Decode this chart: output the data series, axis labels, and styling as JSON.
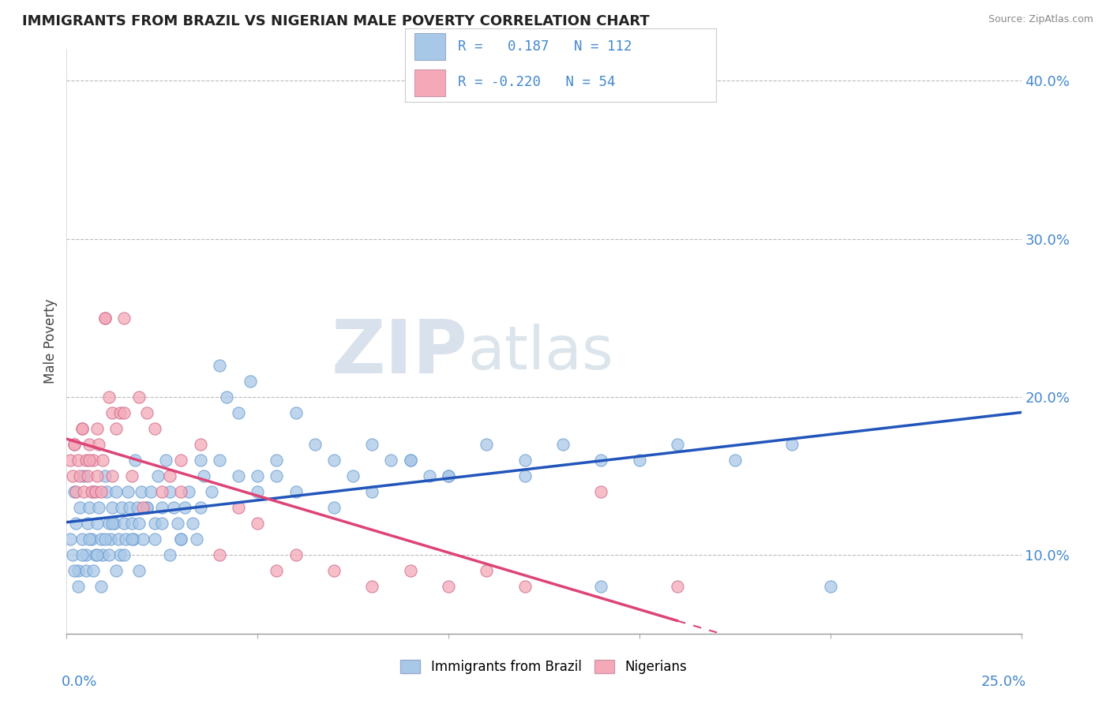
{
  "title": "IMMIGRANTS FROM BRAZIL VS NIGERIAN MALE POVERTY CORRELATION CHART",
  "source": "Source: ZipAtlas.com",
  "ylabel": "Male Poverty",
  "xlim": [
    0.0,
    25.0
  ],
  "ylim": [
    5.0,
    42.0
  ],
  "yticks": [
    10.0,
    20.0,
    30.0,
    40.0
  ],
  "blue_R": 0.187,
  "blue_N": 112,
  "pink_R": -0.22,
  "pink_N": 54,
  "blue_color": "#a8c8e8",
  "pink_color": "#f4a8b8",
  "blue_line_color": "#2255bb",
  "pink_line_color": "#dd4477",
  "legend_label_blue": "Immigrants from Brazil",
  "legend_label_pink": "Nigerians",
  "background_color": "#ffffff",
  "grid_color": "#bbbbbb",
  "title_color": "#222222",
  "axis_label_color": "#4488cc",
  "watermark_zip": "ZIP",
  "watermark_atlas": "atlas",
  "watermark_color": "#c8d8e8",
  "blue_scatter_x": [
    0.1,
    0.15,
    0.2,
    0.25,
    0.3,
    0.35,
    0.4,
    0.45,
    0.5,
    0.55,
    0.6,
    0.65,
    0.7,
    0.75,
    0.8,
    0.85,
    0.9,
    0.95,
    1.0,
    1.05,
    1.1,
    1.15,
    1.2,
    1.25,
    1.3,
    1.35,
    1.4,
    1.45,
    1.5,
    1.55,
    1.6,
    1.65,
    1.7,
    1.75,
    1.8,
    1.85,
    1.9,
    1.95,
    2.0,
    2.1,
    2.2,
    2.3,
    2.4,
    2.5,
    2.6,
    2.7,
    2.8,
    2.9,
    3.0,
    3.1,
    3.2,
    3.3,
    3.4,
    3.5,
    3.6,
    3.8,
    4.0,
    4.2,
    4.5,
    4.8,
    5.0,
    5.5,
    6.0,
    6.5,
    7.0,
    7.5,
    8.0,
    8.5,
    9.0,
    9.5,
    10.0,
    11.0,
    12.0,
    13.0,
    14.0,
    15.0,
    16.0,
    17.5,
    19.0,
    20.0,
    0.2,
    0.3,
    0.4,
    0.5,
    0.6,
    0.7,
    0.8,
    0.9,
    1.0,
    1.1,
    1.2,
    1.3,
    1.5,
    1.7,
    1.9,
    2.1,
    2.3,
    2.5,
    2.7,
    3.0,
    3.5,
    4.0,
    4.5,
    5.0,
    5.5,
    6.0,
    7.0,
    8.0,
    9.0,
    10.0,
    12.0,
    14.0
  ],
  "blue_scatter_y": [
    11,
    10,
    14,
    12,
    9,
    13,
    11,
    15,
    10,
    12,
    13,
    11,
    14,
    10,
    12,
    13,
    11,
    10,
    15,
    14,
    12,
    11,
    13,
    12,
    14,
    11,
    10,
    13,
    12,
    11,
    14,
    13,
    12,
    11,
    16,
    13,
    12,
    14,
    11,
    13,
    14,
    12,
    15,
    13,
    16,
    14,
    13,
    12,
    11,
    13,
    14,
    12,
    11,
    16,
    15,
    14,
    22,
    20,
    19,
    21,
    15,
    16,
    19,
    17,
    16,
    15,
    14,
    16,
    16,
    15,
    15,
    17,
    16,
    17,
    16,
    16,
    17,
    16,
    17,
    8,
    9,
    8,
    10,
    9,
    11,
    9,
    10,
    8,
    11,
    10,
    12,
    9,
    10,
    11,
    9,
    13,
    11,
    12,
    10,
    11,
    13,
    16,
    15,
    14,
    15,
    14,
    13,
    17,
    16,
    15,
    15,
    8
  ],
  "pink_scatter_x": [
    0.1,
    0.15,
    0.2,
    0.25,
    0.3,
    0.35,
    0.4,
    0.45,
    0.5,
    0.55,
    0.6,
    0.65,
    0.7,
    0.75,
    0.8,
    0.85,
    0.9,
    0.95,
    1.0,
    1.1,
    1.2,
    1.3,
    1.4,
    1.5,
    1.7,
    1.9,
    2.1,
    2.3,
    2.5,
    2.7,
    3.0,
    3.5,
    4.0,
    4.5,
    5.0,
    5.5,
    6.0,
    7.0,
    8.0,
    9.0,
    10.0,
    11.0,
    12.0,
    14.0,
    16.0,
    0.2,
    0.4,
    0.6,
    0.8,
    1.0,
    1.2,
    1.5,
    2.0,
    3.0
  ],
  "pink_scatter_y": [
    16,
    15,
    17,
    14,
    16,
    15,
    18,
    14,
    16,
    15,
    17,
    14,
    16,
    14,
    15,
    17,
    14,
    16,
    25,
    20,
    19,
    18,
    19,
    25,
    15,
    20,
    19,
    18,
    14,
    15,
    16,
    17,
    10,
    13,
    12,
    9,
    10,
    9,
    8,
    9,
    8,
    9,
    8,
    14,
    8,
    17,
    18,
    16,
    18,
    25,
    15,
    19,
    13,
    14
  ]
}
